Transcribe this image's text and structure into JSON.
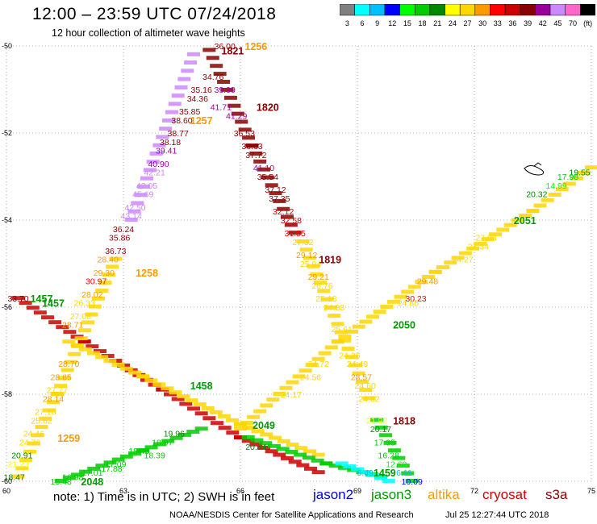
{
  "title": "12:00 – 23:59 UTC 07/24/2018",
  "subtitle": "12 hour collection of altimeter wave heights",
  "legend": {
    "colors": [
      "#808080",
      "#00ffff",
      "#00bfff",
      "#0000ff",
      "#00ff00",
      "#00cc00",
      "#008800",
      "#ffff00",
      "#ffd700",
      "#ff9900",
      "#ff0000",
      "#cc0000",
      "#880000",
      "#990099",
      "#cc88ff",
      "#ff66cc",
      "#000000"
    ],
    "labels": [
      "3",
      "6",
      "9",
      "12",
      "15",
      "18",
      "21",
      "24",
      "27",
      "30",
      "33",
      "36",
      "39",
      "42",
      "45",
      "70",
      "(ft)"
    ]
  },
  "axes": {
    "x_ticks": [
      "60",
      "63",
      "66",
      "69",
      "72",
      "75"
    ],
    "y_ticks": [
      "-50",
      "-52",
      "-54",
      "-56",
      "-58",
      "-60"
    ]
  },
  "note": "note: 1) Time is in UTC; 2) SWH is in feet",
  "satellites": [
    {
      "name": "jason2",
      "color": "#0000dd"
    },
    {
      "name": "jason3",
      "color": "#009900"
    },
    {
      "name": "altika",
      "color": "#ff9900"
    },
    {
      "name": "cryosat",
      "color": "#cc0000"
    },
    {
      "name": "s3a",
      "color": "#880000"
    }
  ],
  "credit": "NOAA/NESDIS Center for Satellite Applications and Research",
  "timestamp": "Jul 25 12:27:44 UTC 2018",
  "chart_data": {
    "type": "scatter",
    "xlim": [
      60,
      75
    ],
    "ylim": [
      -60,
      -50
    ],
    "pass_times": [
      {
        "text": "1256",
        "lon": 66.4,
        "lat": -50.0,
        "color": "#ff9900"
      },
      {
        "text": "1821",
        "lon": 65.8,
        "lat": -50.1,
        "color": "#880000"
      },
      {
        "text": "1820",
        "lon": 66.7,
        "lat": -51.4,
        "color": "#880000"
      },
      {
        "text": "1257",
        "lon": 65.0,
        "lat": -51.7,
        "color": "#ff9900"
      },
      {
        "text": "1258",
        "lon": 63.6,
        "lat": -55.2,
        "color": "#ff9900"
      },
      {
        "text": "1819",
        "lon": 68.3,
        "lat": -54.9,
        "color": "#880000"
      },
      {
        "text": "1457",
        "lon": 60.9,
        "lat": -55.8,
        "color": "#009900"
      },
      {
        "text": "1457",
        "lon": 61.2,
        "lat": -55.9,
        "color": "#009900"
      },
      {
        "text": "2051",
        "lon": 73.3,
        "lat": -54.0,
        "color": "#009900"
      },
      {
        "text": "2050",
        "lon": 70.2,
        "lat": -56.4,
        "color": "#009900"
      },
      {
        "text": "1458",
        "lon": 65.0,
        "lat": -57.8,
        "color": "#009900"
      },
      {
        "text": "2049",
        "lon": 66.6,
        "lat": -58.7,
        "color": "#009900"
      },
      {
        "text": "1259",
        "lon": 61.6,
        "lat": -59.0,
        "color": "#ff9900"
      },
      {
        "text": "1818",
        "lon": 70.2,
        "lat": -58.6,
        "color": "#880000"
      },
      {
        "text": "2048",
        "lon": 62.2,
        "lat": -60.0,
        "color": "#009900"
      },
      {
        "text": "1459",
        "lon": 69.7,
        "lat": -59.8,
        "color": "#009900"
      }
    ],
    "labels": [
      {
        "text": "36.00",
        "lon": 65.6,
        "lat": -50.0,
        "color": "#880000"
      },
      {
        "text": "33.70",
        "lon": 60.3,
        "lat": -55.8,
        "color": "#880000"
      },
      {
        "text": "34.76",
        "lon": 65.3,
        "lat": -50.7,
        "color": "#880000"
      },
      {
        "text": "35.16",
        "lon": 65.0,
        "lat": -51.0,
        "color": "#880000"
      },
      {
        "text": "34.36",
        "lon": 64.9,
        "lat": -51.2,
        "color": "#880000"
      },
      {
        "text": "35.85",
        "lon": 64.7,
        "lat": -51.5,
        "color": "#880000"
      },
      {
        "text": "38.60",
        "lon": 64.5,
        "lat": -51.7,
        "color": "#880000"
      },
      {
        "text": "38.77",
        "lon": 64.4,
        "lat": -52.0,
        "color": "#880000"
      },
      {
        "text": "38.18",
        "lon": 64.2,
        "lat": -52.2,
        "color": "#880000"
      },
      {
        "text": "39.41",
        "lon": 64.1,
        "lat": -52.4,
        "color": "#990099"
      },
      {
        "text": "40.90",
        "lon": 63.9,
        "lat": -52.7,
        "color": "#990099"
      },
      {
        "text": "42.21",
        "lon": 63.8,
        "lat": -52.9,
        "color": "#cc88ff"
      },
      {
        "text": "42.05",
        "lon": 63.6,
        "lat": -53.2,
        "color": "#cc88ff"
      },
      {
        "text": "45.69",
        "lon": 63.5,
        "lat": -53.4,
        "color": "#cc88ff"
      },
      {
        "text": "42.50",
        "lon": 63.3,
        "lat": -53.7,
        "color": "#cc88ff"
      },
      {
        "text": "43.14",
        "lon": 63.2,
        "lat": -53.9,
        "color": "#cc88ff"
      },
      {
        "text": "36.24",
        "lon": 63.0,
        "lat": -54.2,
        "color": "#880000"
      },
      {
        "text": "35.86",
        "lon": 62.9,
        "lat": -54.4,
        "color": "#880000"
      },
      {
        "text": "36.73",
        "lon": 62.8,
        "lat": -54.7,
        "color": "#880000"
      },
      {
        "text": "28.40",
        "lon": 62.6,
        "lat": -54.9,
        "color": "#ff9900"
      },
      {
        "text": "29.30",
        "lon": 62.5,
        "lat": -55.2,
        "color": "#ff9900"
      },
      {
        "text": "30.97",
        "lon": 62.3,
        "lat": -55.4,
        "color": "#ff0000"
      },
      {
        "text": "28.02",
        "lon": 62.2,
        "lat": -55.7,
        "color": "#ff9900"
      },
      {
        "text": "26.33",
        "lon": 62.0,
        "lat": -55.9,
        "color": "#ffd700"
      },
      {
        "text": "27.08",
        "lon": 61.9,
        "lat": -56.2,
        "color": "#ffd700"
      },
      {
        "text": "28.71",
        "lon": 61.7,
        "lat": -56.4,
        "color": "#ff9900"
      },
      {
        "text": "28.70",
        "lon": 61.6,
        "lat": -57.3,
        "color": "#ff9900"
      },
      {
        "text": "28.65",
        "lon": 61.4,
        "lat": -57.6,
        "color": "#ff9900"
      },
      {
        "text": "27.77",
        "lon": 61.3,
        "lat": -57.9,
        "color": "#ffd700"
      },
      {
        "text": "28.14",
        "lon": 61.2,
        "lat": -58.1,
        "color": "#ff9900"
      },
      {
        "text": "27.18",
        "lon": 61.0,
        "lat": -58.4,
        "color": "#ffd700"
      },
      {
        "text": "25.62",
        "lon": 60.9,
        "lat": -58.6,
        "color": "#ffd700"
      },
      {
        "text": "24.46",
        "lon": 60.7,
        "lat": -58.9,
        "color": "#ffd700"
      },
      {
        "text": "24.76",
        "lon": 60.6,
        "lat": -59.1,
        "color": "#ffd700"
      },
      {
        "text": "20.91",
        "lon": 60.4,
        "lat": -59.4,
        "color": "#008800"
      },
      {
        "text": "21.23",
        "lon": 60.3,
        "lat": -59.6,
        "color": "#ffff00"
      },
      {
        "text": "18.47",
        "lon": 60.2,
        "lat": -59.9,
        "color": "#008800"
      },
      {
        "text": "39.99",
        "lon": 65.6,
        "lat": -51.0,
        "color": "#990099"
      },
      {
        "text": "41.71",
        "lon": 65.5,
        "lat": -51.4,
        "color": "#990099"
      },
      {
        "text": "41.29",
        "lon": 65.9,
        "lat": -51.6,
        "color": "#990099"
      },
      {
        "text": "36.53",
        "lon": 66.1,
        "lat": -52.0,
        "color": "#880000"
      },
      {
        "text": "36.63",
        "lon": 66.3,
        "lat": -52.3,
        "color": "#880000"
      },
      {
        "text": "37.72",
        "lon": 66.4,
        "lat": -52.5,
        "color": "#880000"
      },
      {
        "text": "41.10",
        "lon": 66.6,
        "lat": -52.8,
        "color": "#990099"
      },
      {
        "text": "35.54",
        "lon": 66.7,
        "lat": -53.0,
        "color": "#880000"
      },
      {
        "text": "37.12",
        "lon": 66.9,
        "lat": -53.3,
        "color": "#880000"
      },
      {
        "text": "37.35",
        "lon": 67.0,
        "lat": -53.5,
        "color": "#880000"
      },
      {
        "text": "32.12",
        "lon": 67.1,
        "lat": -53.8,
        "color": "#cc0000"
      },
      {
        "text": "32.58",
        "lon": 67.3,
        "lat": -54.0,
        "color": "#cc0000"
      },
      {
        "text": "31.55",
        "lon": 67.4,
        "lat": -54.3,
        "color": "#ff0000"
      },
      {
        "text": "27.32",
        "lon": 67.6,
        "lat": -54.5,
        "color": "#ffd700"
      },
      {
        "text": "29.12",
        "lon": 67.7,
        "lat": -54.8,
        "color": "#ff9900"
      },
      {
        "text": "25.94",
        "lon": 67.8,
        "lat": -55.0,
        "color": "#ffd700"
      },
      {
        "text": "29.21",
        "lon": 68.0,
        "lat": -55.3,
        "color": "#ff9900"
      },
      {
        "text": "26.76",
        "lon": 68.1,
        "lat": -55.5,
        "color": "#ffd700"
      },
      {
        "text": "25.18",
        "lon": 68.2,
        "lat": -55.8,
        "color": "#ffd700"
      },
      {
        "text": "24.88",
        "lon": 68.4,
        "lat": -56.0,
        "color": "#ffd700"
      },
      {
        "text": "25.61",
        "lon": 68.6,
        "lat": -56.5,
        "color": "#ffd700"
      },
      {
        "text": "24.26",
        "lon": 68.8,
        "lat": -57.1,
        "color": "#ffd700"
      },
      {
        "text": "24.49",
        "lon": 69.0,
        "lat": -57.3,
        "color": "#ffd700"
      },
      {
        "text": "28.57",
        "lon": 69.1,
        "lat": -57.6,
        "color": "#ff9900"
      },
      {
        "text": "24.60",
        "lon": 69.2,
        "lat": -57.8,
        "color": "#ffd700"
      },
      {
        "text": "24.82",
        "lon": 69.3,
        "lat": -58.1,
        "color": "#ffd700"
      },
      {
        "text": "21.92",
        "lon": 69.5,
        "lat": -58.6,
        "color": "#ffff00"
      },
      {
        "text": "20.17",
        "lon": 69.6,
        "lat": -58.8,
        "color": "#008800"
      },
      {
        "text": "17.95",
        "lon": 69.7,
        "lat": -59.1,
        "color": "#00cc00"
      },
      {
        "text": "16.28",
        "lon": 69.8,
        "lat": -59.4,
        "color": "#00cc00"
      },
      {
        "text": "12.69",
        "lon": 70.0,
        "lat": -59.6,
        "color": "#00ff00"
      },
      {
        "text": "6.11",
        "lon": 70.2,
        "lat": -59.8,
        "color": "#00bfff"
      },
      {
        "text": "10.09",
        "lon": 70.4,
        "lat": -60.0,
        "color": "#0000ff"
      },
      {
        "text": "19.55",
        "lon": 74.7,
        "lat": -52.9,
        "color": "#008800"
      },
      {
        "text": "17.98",
        "lon": 74.4,
        "lat": -53.0,
        "color": "#00cc00"
      },
      {
        "text": "14.99",
        "lon": 74.1,
        "lat": -53.2,
        "color": "#00ff00"
      },
      {
        "text": "20.32",
        "lon": 73.6,
        "lat": -53.4,
        "color": "#008800"
      },
      {
        "text": "27.03",
        "lon": 72.3,
        "lat": -54.4,
        "color": "#ffd700"
      },
      {
        "text": "27.34",
        "lon": 72.1,
        "lat": -54.6,
        "color": "#ffd700"
      },
      {
        "text": "24.27",
        "lon": 71.7,
        "lat": -54.9,
        "color": "#ffd700"
      },
      {
        "text": "29.48",
        "lon": 70.8,
        "lat": -55.4,
        "color": "#ff9900"
      },
      {
        "text": "30.23",
        "lon": 70.5,
        "lat": -55.8,
        "color": "#ff0000"
      },
      {
        "text": "24.86",
        "lon": 70.3,
        "lat": -55.9,
        "color": "#ffd700"
      },
      {
        "text": "24.72",
        "lon": 68.0,
        "lat": -57.3,
        "color": "#ffd700"
      },
      {
        "text": "24.56",
        "lon": 67.8,
        "lat": -57.6,
        "color": "#ffd700"
      },
      {
        "text": "24.17",
        "lon": 67.3,
        "lat": -58.0,
        "color": "#ffd700"
      },
      {
        "text": "19.96",
        "lon": 64.3,
        "lat": -58.9,
        "color": "#008800"
      },
      {
        "text": "18.97",
        "lon": 64.0,
        "lat": -59.1,
        "color": "#00cc00"
      },
      {
        "text": "18.45",
        "lon": 63.4,
        "lat": -59.3,
        "color": "#00cc00"
      },
      {
        "text": "18.39",
        "lon": 63.8,
        "lat": -59.4,
        "color": "#00cc00"
      },
      {
        "text": "17.09",
        "lon": 62.8,
        "lat": -59.6,
        "color": "#00cc00"
      },
      {
        "text": "17.88",
        "lon": 62.7,
        "lat": -59.7,
        "color": "#00cc00"
      },
      {
        "text": "17.01",
        "lon": 62.2,
        "lat": -59.8,
        "color": "#00cc00"
      },
      {
        "text": "16.98",
        "lon": 61.7,
        "lat": -59.9,
        "color": "#00cc00"
      },
      {
        "text": "15.48",
        "lon": 61.4,
        "lat": -60.0,
        "color": "#00cc00"
      },
      {
        "text": "20.34",
        "lon": 66.4,
        "lat": -59.2,
        "color": "#008800"
      },
      {
        "text": "6.49",
        "lon": 69.2,
        "lat": -59.8,
        "color": "#00bfff"
      }
    ],
    "tracks": [
      {
        "color": "#cc0000",
        "points": [
          [
            60.3,
            -55.8
          ],
          [
            62.0,
            -56.8
          ],
          [
            64.0,
            -57.9
          ],
          [
            66.0,
            -59.0
          ],
          [
            68.0,
            -59.8
          ]
        ]
      },
      {
        "color": "#cc88ff",
        "points": [
          [
            64.8,
            -50.2
          ],
          [
            63.2,
            -54.0
          ]
        ]
      },
      {
        "color": "#ffd700",
        "points": [
          [
            62.8,
            -54.9
          ],
          [
            61.3,
            -58.0
          ],
          [
            60.3,
            -59.9
          ]
        ]
      },
      {
        "color": "#880000",
        "points": [
          [
            65.2,
            -50.1
          ],
          [
            66.3,
            -52.3
          ],
          [
            67.4,
            -54.3
          ]
        ]
      },
      {
        "color": "#ffd700",
        "points": [
          [
            67.6,
            -54.5
          ],
          [
            69.3,
            -58.1
          ]
        ]
      },
      {
        "color": "#00cc00",
        "points": [
          [
            69.5,
            -58.6
          ],
          [
            70.4,
            -60.0
          ]
        ]
      },
      {
        "color": "#ffd700",
        "points": [
          [
            66.0,
            -58.8
          ],
          [
            68.5,
            -56.8
          ],
          [
            71.0,
            -55.2
          ],
          [
            73.5,
            -53.8
          ],
          [
            75.0,
            -52.8
          ]
        ]
      },
      {
        "color": "#00cc00",
        "points": [
          [
            61.4,
            -60.0
          ],
          [
            63.5,
            -59.3
          ],
          [
            65.0,
            -58.8
          ]
        ]
      },
      {
        "color": "#ffd700",
        "points": [
          [
            61.6,
            -56.8
          ],
          [
            63.5,
            -57.6
          ],
          [
            66.0,
            -58.7
          ],
          [
            68.0,
            -59.4
          ]
        ]
      },
      {
        "color": "#00cc00",
        "points": [
          [
            66.2,
            -59.0
          ],
          [
            68.2,
            -59.6
          ],
          [
            69.6,
            -59.9
          ]
        ]
      },
      {
        "color": "#00ffff",
        "points": [
          [
            68.6,
            -59.6
          ],
          [
            69.8,
            -60.0
          ]
        ]
      }
    ]
  }
}
